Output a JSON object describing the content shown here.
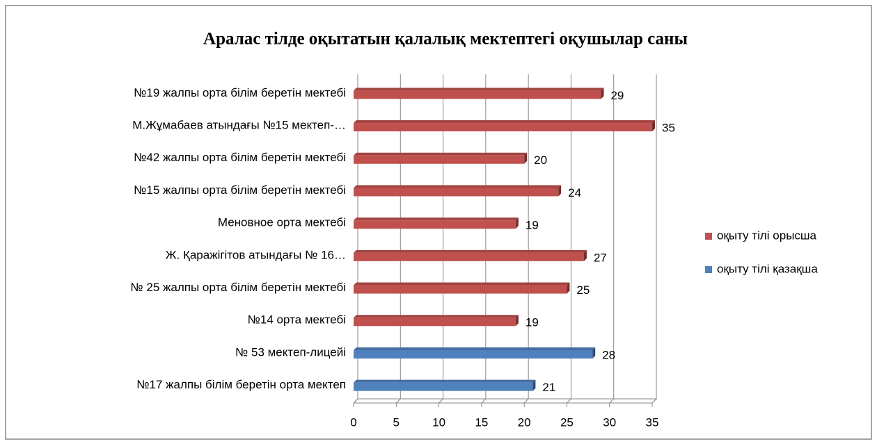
{
  "chart_data": {
    "type": "bar",
    "orientation": "horizontal",
    "title": "Аралас  тілде оқытатын қалалық мектептегі оқушылар саны",
    "categories": [
      "№19 жалпы орта білім беретін мектебі",
      "М.Жұмабаев атындағы №15 мектеп-…",
      "№42 жалпы орта білім беретін мектебі",
      "№15 жалпы орта білім беретін мектебі",
      "Меновное орта мектебі",
      "Ж. Қаражігітов атындағы № 16…",
      "№ 25 жалпы орта білім беретін мектебі",
      "№14 орта мектебі",
      "№ 53 мектеп-лицейі",
      "№17 жалпы білім беретін орта мектеп"
    ],
    "series": [
      {
        "name": "оқыту тілі орысша",
        "color": "#c0504d",
        "values": [
          29,
          35,
          20,
          24,
          19,
          27,
          25,
          19,
          null,
          null
        ]
      },
      {
        "name": "оқыту тілі қазақша",
        "color": "#4f81bd",
        "values": [
          null,
          null,
          null,
          null,
          null,
          null,
          null,
          null,
          28,
          21
        ]
      }
    ],
    "xlim": [
      0,
      35
    ],
    "xticks": [
      0,
      5,
      10,
      15,
      20,
      25,
      30,
      35
    ],
    "grid": true,
    "legend": "right"
  }
}
